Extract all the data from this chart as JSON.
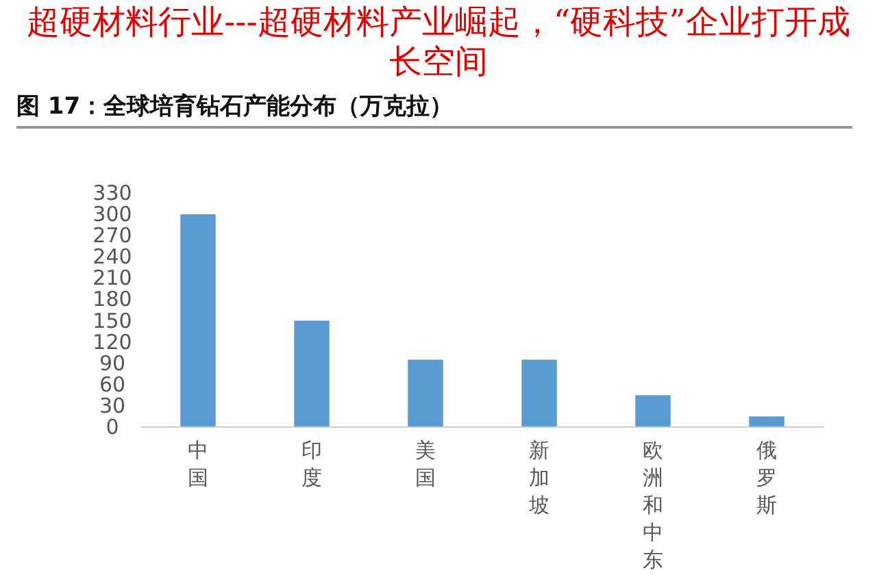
{
  "chart_data": {
    "type": "bar",
    "title": "超硬材料行业---超硬材料产业崛起，“硬科技”企业打开成长空间",
    "subtitle": "图 17：全球培育钻石产能分布（万克拉）",
    "categories": [
      "中国",
      "印度",
      "美国",
      "新加坡",
      "欧洲和中东",
      "俄罗斯"
    ],
    "values": [
      300,
      150,
      95,
      95,
      45,
      15
    ],
    "color": "#5b9bd5",
    "ylim": [
      0,
      330
    ],
    "yticks": [
      0,
      30,
      60,
      90,
      120,
      150,
      180,
      210,
      240,
      270,
      300,
      330
    ],
    "grid": false
  }
}
